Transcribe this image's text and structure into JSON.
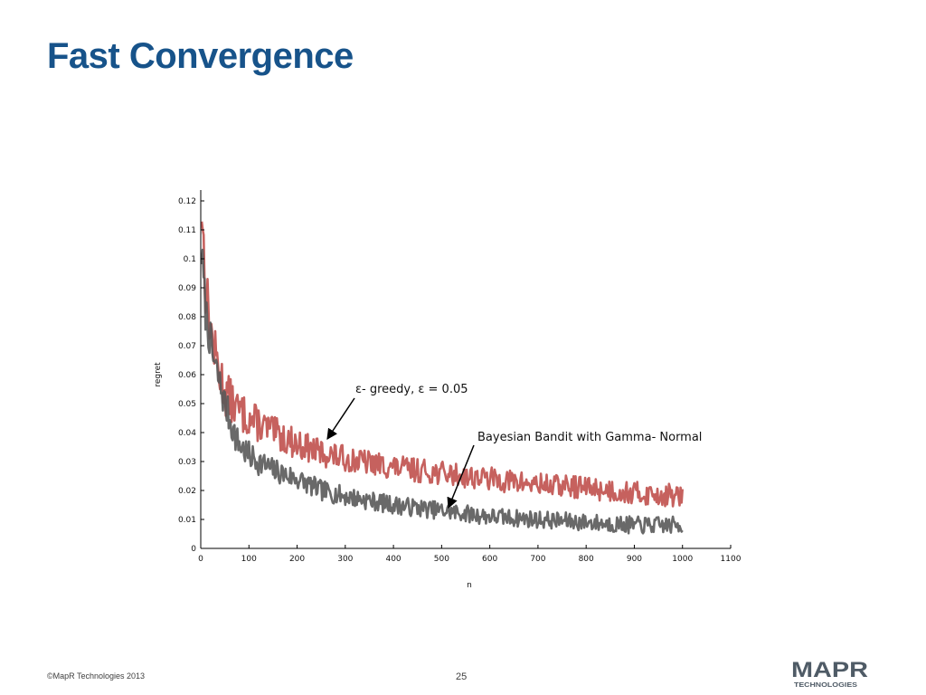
{
  "slide": {
    "title": "Fast Convergence",
    "footer_copyright": "©MapR Technologies 2013",
    "page_number": "25",
    "logo_text": "MAPR",
    "logo_subtext": "TECHNOLOGIES"
  },
  "colors": {
    "title": "#17538a",
    "epsilon_series": "#c0504d",
    "bayes_series": "#595959",
    "logo_gray": "#4f5b66",
    "logo_blue": "#1f5fa6"
  },
  "chart_data": {
    "type": "line",
    "xlabel": "n",
    "ylabel": "regret",
    "xlim": [
      0,
      1100
    ],
    "ylim": [
      0,
      0.12
    ],
    "x_ticks": [
      0,
      100,
      200,
      300,
      400,
      500,
      600,
      700,
      800,
      900,
      1000,
      1100
    ],
    "y_ticks": [
      0,
      0.01,
      0.02,
      0.03,
      0.04,
      0.05,
      0.06,
      0.07,
      0.08,
      0.09,
      0.1,
      0.11,
      0.12
    ],
    "x_tick_labels": [
      "0",
      "100",
      "200",
      "300",
      "400",
      "500",
      "600",
      "700",
      "800",
      "900",
      "1000",
      "1100"
    ],
    "y_tick_labels": [
      "0",
      "0.01",
      "0.02",
      "0.03",
      "0.04",
      "0.05",
      "0.06",
      "0.07",
      "0.08",
      "0.09",
      "0.1",
      "0.11",
      "0.12"
    ],
    "grid": false,
    "series": [
      {
        "key": "epsilon",
        "x": [
          2,
          10,
          25,
          50,
          75,
          100,
          150,
          200,
          250,
          300,
          400,
          500,
          600,
          700,
          800,
          900,
          1000
        ],
        "values": [
          0.118,
          0.09,
          0.07,
          0.054,
          0.048,
          0.045,
          0.04,
          0.036,
          0.033,
          0.031,
          0.028,
          0.026,
          0.024,
          0.022,
          0.021,
          0.019,
          0.018
        ],
        "noise": 0.004
      },
      {
        "key": "bayes",
        "x": [
          2,
          10,
          25,
          50,
          75,
          100,
          150,
          200,
          250,
          300,
          400,
          500,
          600,
          700,
          800,
          900,
          1000
        ],
        "values": [
          0.102,
          0.082,
          0.066,
          0.05,
          0.037,
          0.032,
          0.027,
          0.024,
          0.02,
          0.018,
          0.015,
          0.013,
          0.011,
          0.01,
          0.009,
          0.008,
          0.008
        ],
        "noise": 0.003
      }
    ],
    "annotations": [
      {
        "key": "epsilon",
        "text": "ε- greedy, ε = 0.05",
        "x": 265,
        "y": 0.038
      },
      {
        "key": "bayes",
        "text": "Bayesian Bandit with Gamma- Normal",
        "x": 515,
        "y": 0.014
      }
    ]
  }
}
